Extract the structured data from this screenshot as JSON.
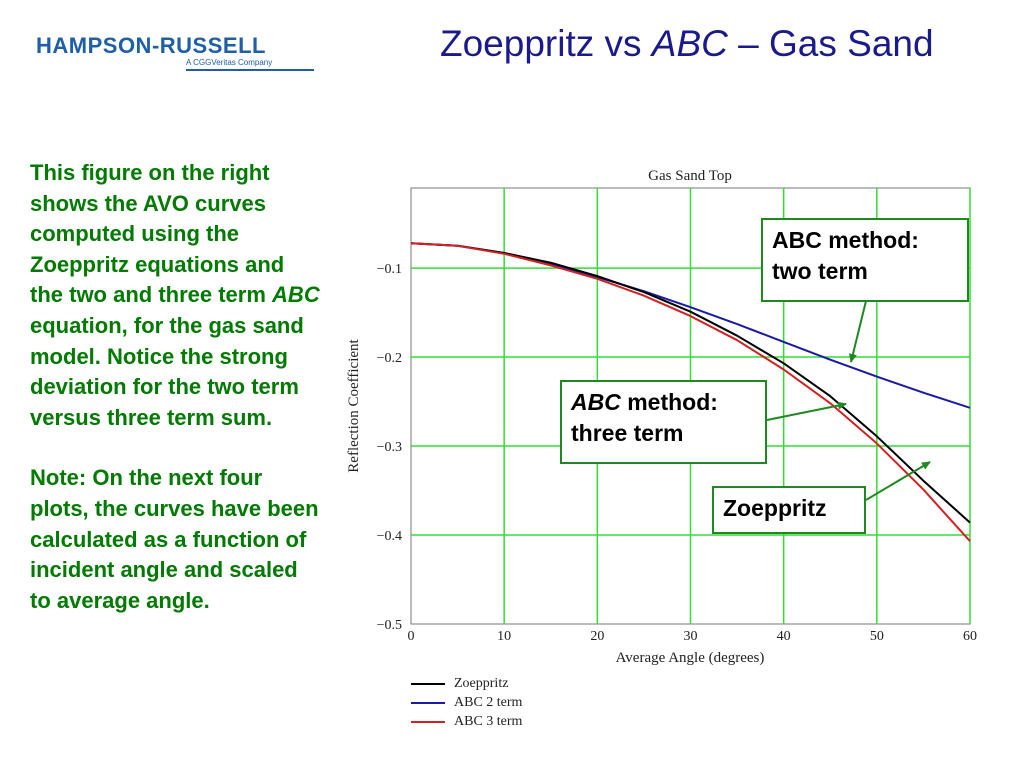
{
  "header": {
    "logo_main": "HAMPSON-RUSSELL",
    "logo_sub": "A CGGVeritas Company",
    "title_pre": "Zoeppritz vs ",
    "title_em": "ABC",
    "title_post": " – Gas Sand"
  },
  "body": {
    "p1_pre": "This figure on the right shows the AVO curves computed using the Zoeppritz equations and the two and three term ",
    "p1_em": "ABC",
    "p1_post": " equation, for the gas sand model. Notice the strong deviation for the two term versus three term sum.",
    "p2": "Note: On the next four plots, the curves have been calculated as a function of incident angle and scaled to average angle."
  },
  "callouts": {
    "two_term": "ABC method: two term",
    "three_term_em": "ABC",
    "three_term_rest": " method:",
    "three_term_line2": "three term",
    "zoeppritz": "Zoeppritz"
  },
  "colors": {
    "zoeppritz": "#000000",
    "abc2": "#1a1aa8",
    "abc3": "#d42020",
    "grid": "#33dd33",
    "text_green": "#007a00",
    "title_blue": "#1a1a8c"
  },
  "chart_data": {
    "type": "line",
    "title": "Gas Sand Top",
    "xlabel": "Average Angle (degrees)",
    "ylabel": "Reflection Coefficient",
    "xlim": [
      0,
      60
    ],
    "ylim": [
      -0.5,
      -0.01
    ],
    "xticks": [
      0,
      10,
      20,
      30,
      40,
      50,
      60
    ],
    "yticks": [
      -0.1,
      -0.2,
      -0.3,
      -0.4,
      -0.5
    ],
    "ytick_labels": [
      "−0.1",
      "−0.2",
      "−0.3",
      "−0.4",
      "−0.5"
    ],
    "grid": true,
    "legend_position": "bottom-left",
    "x": [
      0,
      5,
      10,
      15,
      20,
      25,
      30,
      35,
      40,
      45,
      50,
      55,
      60
    ],
    "series": [
      {
        "name": "Zoeppritz",
        "values": [
          -0.072,
          -0.075,
          -0.083,
          -0.094,
          -0.109,
          -0.127,
          -0.149,
          -0.176,
          -0.207,
          -0.244,
          -0.289,
          -0.339,
          -0.386
        ]
      },
      {
        "name": "ABC 2 term",
        "values": [
          -0.072,
          -0.075,
          -0.083,
          -0.095,
          -0.11,
          -0.126,
          -0.144,
          -0.163,
          -0.183,
          -0.203,
          -0.222,
          -0.24,
          -0.257
        ]
      },
      {
        "name": "ABC 3 term",
        "values": [
          -0.072,
          -0.075,
          -0.084,
          -0.097,
          -0.112,
          -0.131,
          -0.154,
          -0.181,
          -0.214,
          -0.252,
          -0.297,
          -0.349,
          -0.407
        ]
      }
    ]
  }
}
